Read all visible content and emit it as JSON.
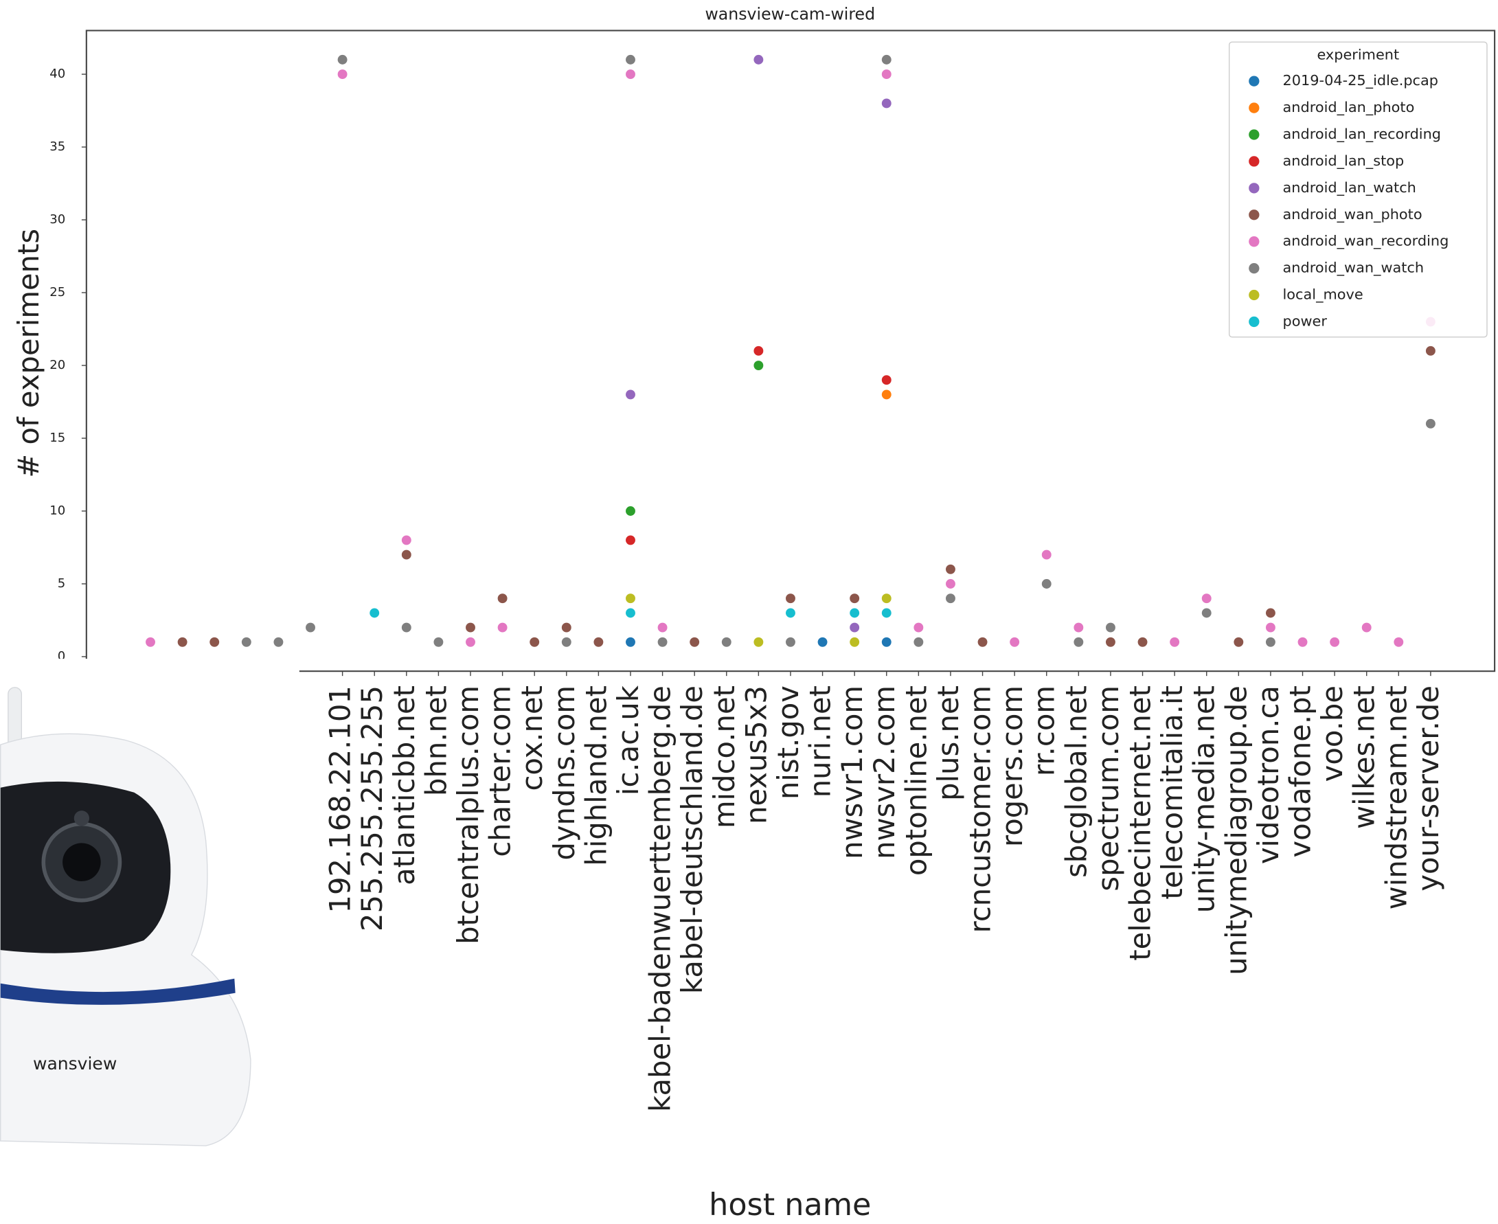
{
  "chart_data": {
    "type": "scatter",
    "title": "wansview-cam-wired",
    "xlabel": "host name",
    "ylabel": "# of experiments",
    "categories": [
      null,
      null,
      null,
      null,
      null,
      null,
      "192.168.22.101",
      "255.255.255.255",
      "atlanticbb.net",
      "bhn.net",
      "btcentralplus.com",
      "charter.com",
      "cox.net",
      "dyndns.com",
      "highland.net",
      "ic.ac.uk",
      "kabel-badenwuerttemberg.de",
      "kabel-deutschland.de",
      "midco.net",
      "nexus5x3",
      "nist.gov",
      "nuri.net",
      "nwsvr1.com",
      "nwsvr2.com",
      "optonline.net",
      "plus.net",
      "rcncustomer.com",
      "rogers.com",
      "rr.com",
      "sbcglobal.net",
      "spectrum.com",
      "telebecinternet.net",
      "telecomitalia.it",
      "unity-media.net",
      "unitymediagroup.de",
      "videotron.ca",
      "vodafone.pt",
      "voo.be",
      "wilkes.net",
      "windstream.net",
      "your-server.de"
    ],
    "legend_title": "experiment",
    "legend_position": "upper right",
    "ylim": [
      -1,
      43
    ],
    "yticks": [
      0,
      5,
      10,
      15,
      20,
      25,
      30,
      35,
      40
    ],
    "series": [
      {
        "name": "2019-04-25_idle.pcap",
        "color": "#1f77b4",
        "values": [
          null,
          null,
          null,
          null,
          null,
          null,
          null,
          null,
          null,
          null,
          null,
          null,
          null,
          null,
          null,
          1,
          null,
          null,
          null,
          null,
          null,
          1,
          null,
          1,
          null,
          null,
          null,
          null,
          null,
          null,
          null,
          null,
          null,
          null,
          null,
          null,
          null,
          null,
          null,
          null,
          null
        ]
      },
      {
        "name": "android_lan_photo",
        "color": "#ff7f0e",
        "values": [
          null,
          null,
          null,
          null,
          null,
          null,
          null,
          null,
          null,
          null,
          null,
          null,
          null,
          null,
          null,
          null,
          null,
          null,
          null,
          null,
          null,
          null,
          null,
          18,
          null,
          null,
          null,
          null,
          null,
          null,
          null,
          null,
          null,
          null,
          null,
          null,
          null,
          null,
          null,
          null,
          null
        ]
      },
      {
        "name": "android_lan_recording",
        "color": "#2ca02c",
        "values": [
          null,
          null,
          null,
          null,
          null,
          null,
          null,
          null,
          null,
          null,
          null,
          null,
          null,
          null,
          null,
          10,
          null,
          null,
          null,
          20,
          null,
          null,
          null,
          null,
          null,
          null,
          null,
          null,
          null,
          null,
          null,
          null,
          null,
          null,
          null,
          null,
          null,
          null,
          null,
          null,
          null
        ]
      },
      {
        "name": "android_lan_stop",
        "color": "#d62728",
        "values": [
          null,
          null,
          null,
          null,
          null,
          null,
          null,
          null,
          null,
          null,
          null,
          null,
          null,
          null,
          null,
          8,
          null,
          null,
          null,
          21,
          null,
          null,
          null,
          19,
          null,
          null,
          null,
          null,
          null,
          null,
          null,
          null,
          null,
          null,
          null,
          null,
          null,
          null,
          null,
          null,
          null
        ]
      },
      {
        "name": "android_lan_watch",
        "color": "#9467bd",
        "values": [
          null,
          null,
          null,
          null,
          null,
          null,
          null,
          null,
          null,
          null,
          null,
          null,
          null,
          null,
          null,
          18,
          null,
          null,
          null,
          41,
          null,
          null,
          2,
          38,
          null,
          null,
          null,
          null,
          null,
          null,
          null,
          null,
          null,
          null,
          null,
          null,
          null,
          null,
          null,
          null,
          null
        ]
      },
      {
        "name": "android_wan_photo",
        "color": "#8c564b",
        "values": [
          null,
          1,
          1,
          null,
          null,
          null,
          null,
          null,
          7,
          null,
          2,
          4,
          1,
          2,
          1,
          null,
          null,
          1,
          null,
          null,
          4,
          null,
          4,
          null,
          null,
          6,
          1,
          null,
          null,
          null,
          1,
          1,
          null,
          null,
          1,
          3,
          null,
          null,
          null,
          null,
          21
        ]
      },
      {
        "name": "android_wan_recording",
        "color": "#e377c2",
        "values": [
          1,
          null,
          null,
          null,
          null,
          null,
          40,
          null,
          8,
          null,
          1,
          2,
          null,
          null,
          null,
          40,
          2,
          null,
          null,
          null,
          null,
          null,
          null,
          40,
          2,
          5,
          null,
          1,
          7,
          2,
          null,
          null,
          1,
          4,
          null,
          2,
          1,
          1,
          2,
          1,
          23
        ]
      },
      {
        "name": "android_wan_watch",
        "color": "#7f7f7f",
        "values": [
          null,
          null,
          null,
          1,
          1,
          2,
          41,
          null,
          2,
          1,
          null,
          null,
          null,
          1,
          null,
          41,
          1,
          null,
          1,
          null,
          1,
          null,
          null,
          41,
          1,
          4,
          null,
          null,
          5,
          1,
          2,
          null,
          null,
          3,
          null,
          1,
          null,
          null,
          null,
          null,
          16
        ]
      },
      {
        "name": "local_move",
        "color": "#bcbd22",
        "values": [
          null,
          null,
          null,
          null,
          null,
          null,
          null,
          null,
          null,
          null,
          null,
          null,
          null,
          null,
          null,
          4,
          null,
          null,
          null,
          1,
          null,
          null,
          1,
          4,
          null,
          null,
          null,
          null,
          null,
          null,
          null,
          null,
          null,
          null,
          null,
          null,
          null,
          null,
          null,
          null,
          null
        ]
      },
      {
        "name": "power",
        "color": "#17becf",
        "values": [
          null,
          null,
          null,
          null,
          null,
          null,
          null,
          3,
          null,
          null,
          null,
          null,
          null,
          null,
          null,
          3,
          null,
          null,
          null,
          null,
          3,
          null,
          3,
          3,
          null,
          null,
          null,
          null,
          null,
          null,
          null,
          null,
          null,
          null,
          null,
          null,
          null,
          null,
          null,
          null,
          null
        ]
      }
    ]
  },
  "photo": {
    "brand": "wansview"
  }
}
